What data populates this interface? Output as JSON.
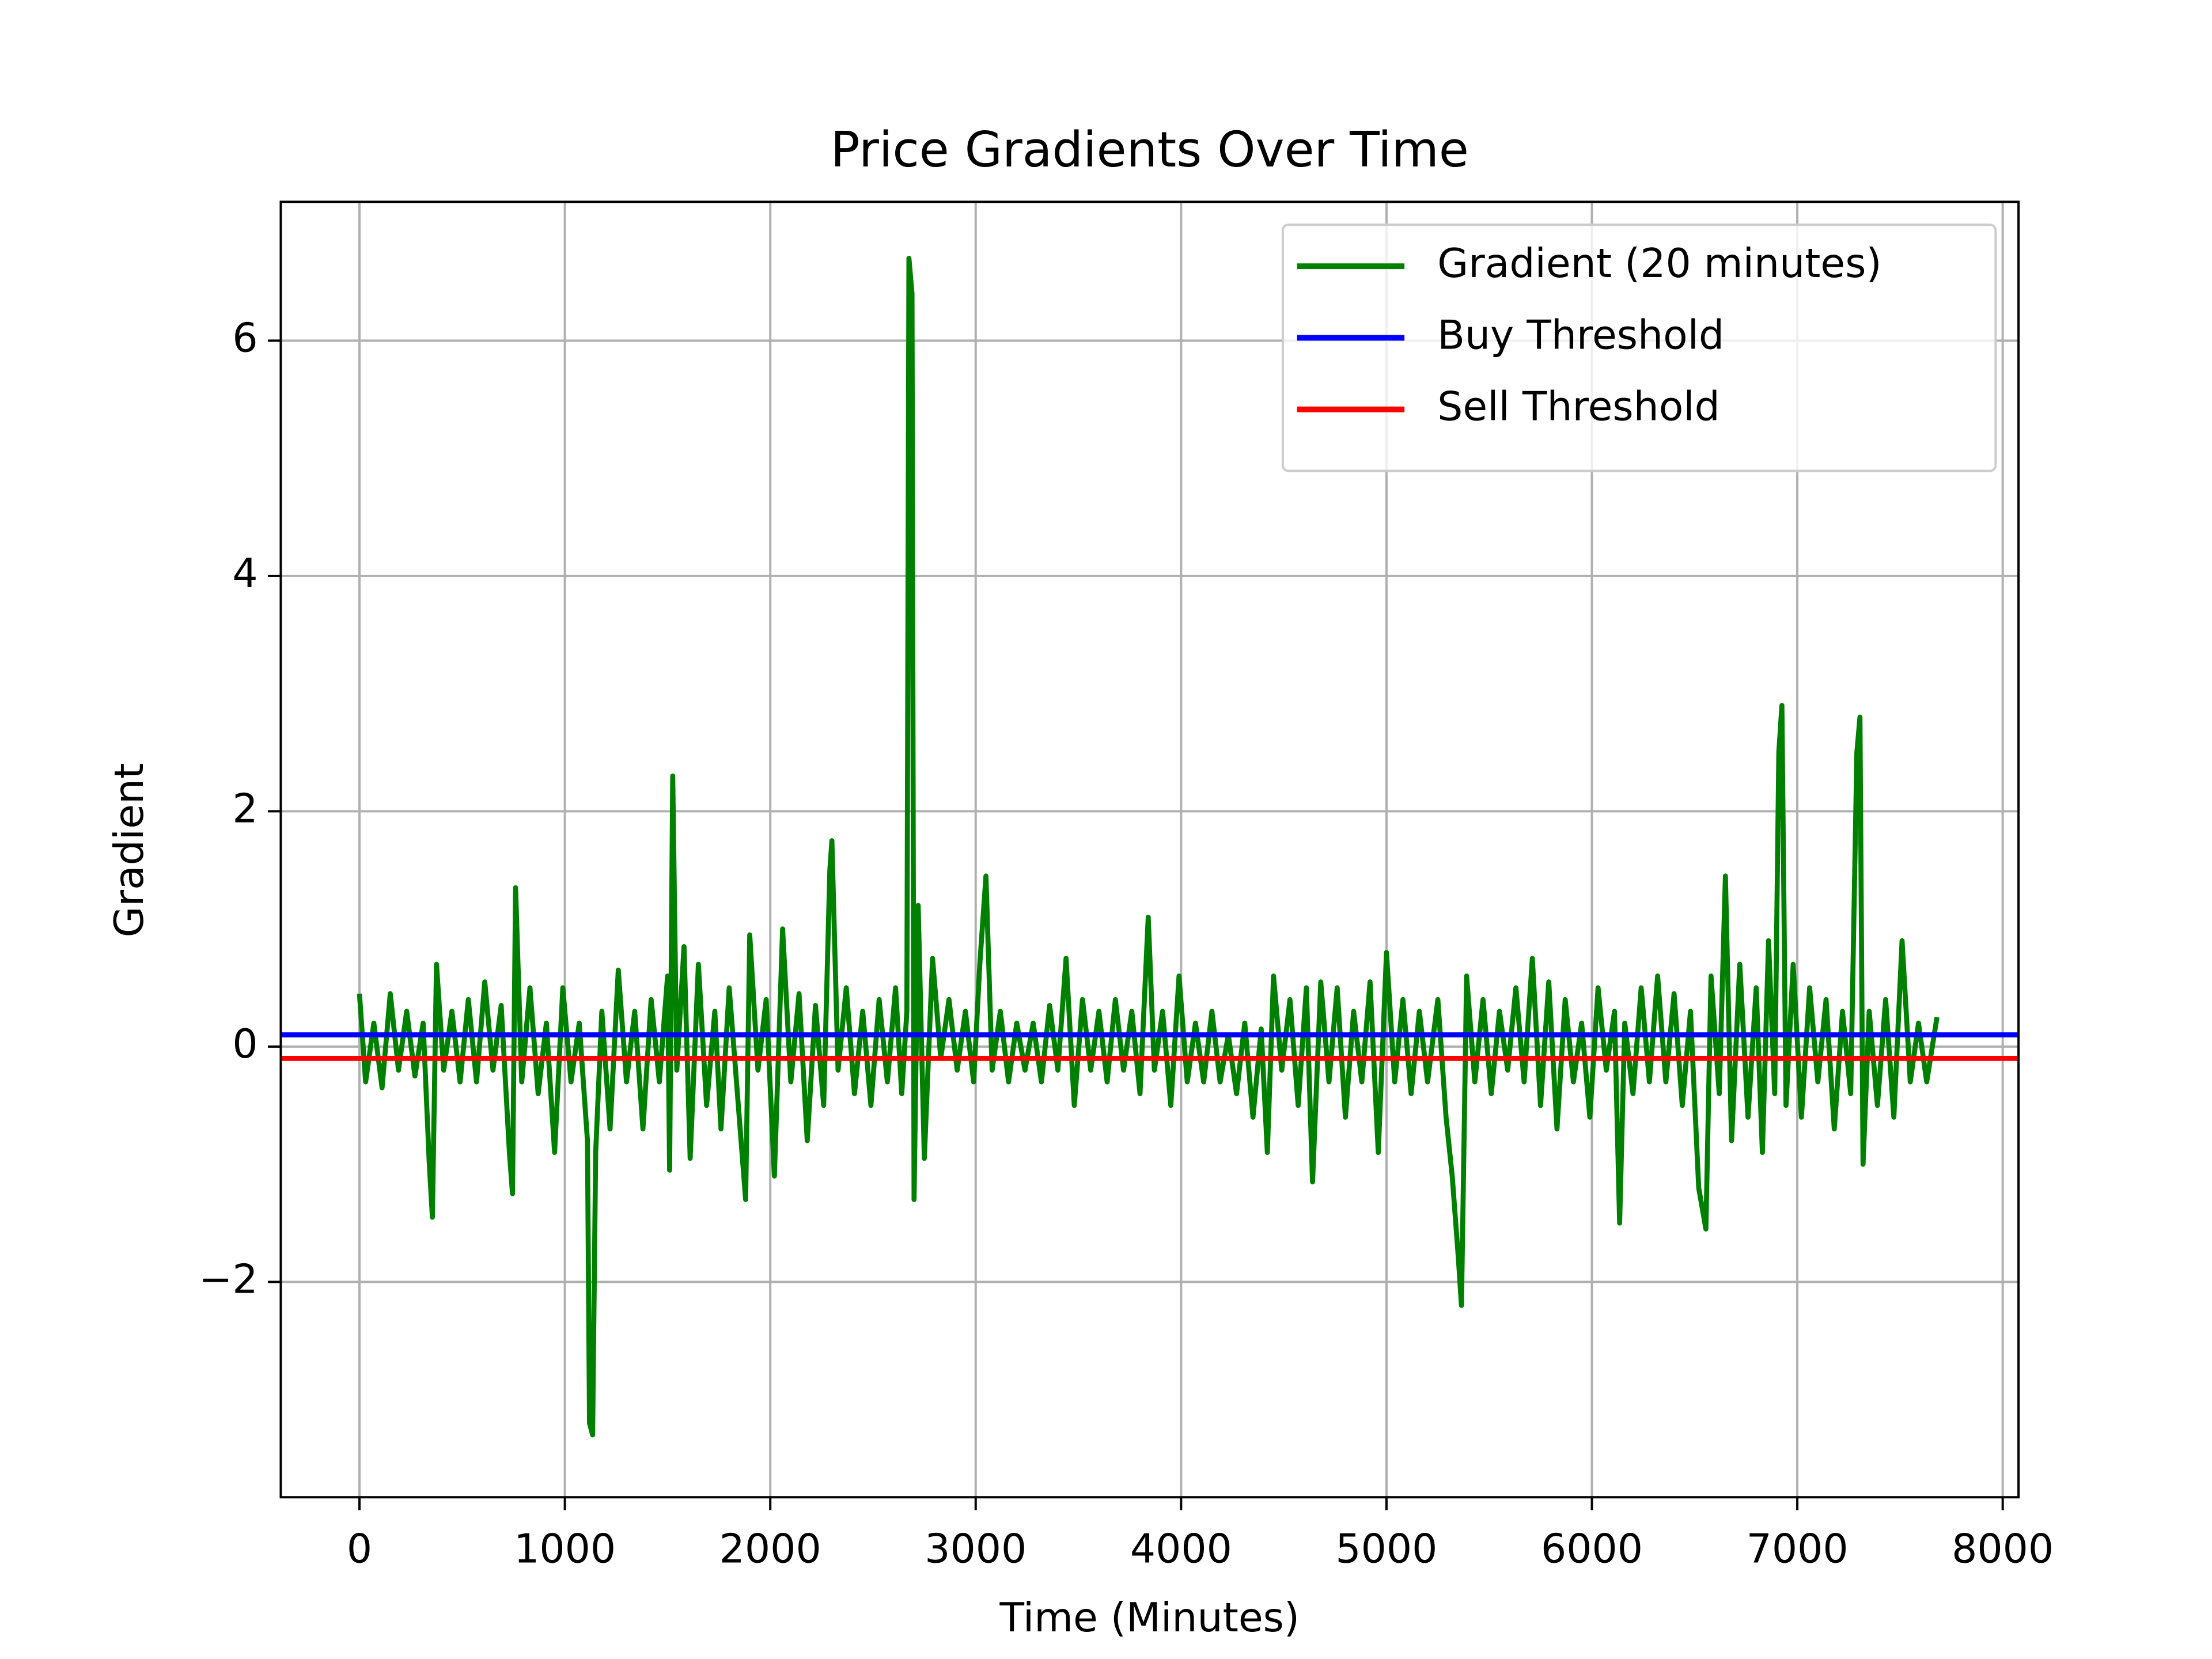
{
  "chart_data": {
    "type": "line",
    "title": "Price Gradients Over Time",
    "x_label": "Time (Minutes)",
    "y_label": "Gradient",
    "xlim": [
      -383,
      8077
    ],
    "ylim": [
      -3.83,
      7.18
    ],
    "xticks": [
      0,
      1000,
      2000,
      3000,
      4000,
      5000,
      6000,
      7000,
      8000
    ],
    "yticks": [
      {
        "value": -2,
        "label": "−2"
      },
      0,
      2,
      4,
      6
    ],
    "grid": true,
    "legend": "upper right",
    "series": [
      {
        "name": "Gradient (20 minutes)",
        "color": "#008000",
        "x": [
          0,
          30,
          70,
          110,
          150,
          190,
          230,
          270,
          310,
          340,
          355,
          375,
          410,
          450,
          490,
          530,
          570,
          610,
          650,
          690,
          730,
          745,
          760,
          790,
          830,
          870,
          910,
          950,
          990,
          1030,
          1070,
          1110,
          1120,
          1135,
          1150,
          1180,
          1220,
          1260,
          1300,
          1340,
          1380,
          1420,
          1460,
          1500,
          1510,
          1525,
          1545,
          1580,
          1610,
          1650,
          1690,
          1730,
          1760,
          1800,
          1840,
          1880,
          1900,
          1940,
          1980,
          2020,
          2060,
          2100,
          2140,
          2180,
          2220,
          2260,
          2290,
          2300,
          2330,
          2370,
          2410,
          2450,
          2490,
          2530,
          2570,
          2610,
          2640,
          2665,
          2675,
          2690,
          2700,
          2720,
          2750,
          2790,
          2830,
          2870,
          2910,
          2950,
          2990,
          3020,
          3050,
          3080,
          3120,
          3160,
          3200,
          3240,
          3280,
          3320,
          3360,
          3400,
          3440,
          3480,
          3520,
          3560,
          3600,
          3640,
          3680,
          3720,
          3760,
          3800,
          3840,
          3870,
          3910,
          3950,
          3990,
          4030,
          4070,
          4110,
          4150,
          4190,
          4230,
          4270,
          4310,
          4350,
          4390,
          4420,
          4450,
          4490,
          4530,
          4570,
          4610,
          4640,
          4680,
          4720,
          4760,
          4800,
          4840,
          4880,
          4920,
          4960,
          5000,
          5040,
          5080,
          5120,
          5160,
          5200,
          5250,
          5290,
          5320,
          5350,
          5365,
          5390,
          5430,
          5470,
          5510,
          5550,
          5590,
          5630,
          5670,
          5710,
          5750,
          5790,
          5830,
          5870,
          5910,
          5950,
          5990,
          6030,
          6070,
          6110,
          6135,
          6160,
          6200,
          6240,
          6280,
          6320,
          6360,
          6400,
          6440,
          6480,
          6520,
          6555,
          6580,
          6620,
          6650,
          6680,
          6720,
          6760,
          6800,
          6830,
          6860,
          6890,
          6910,
          6925,
          6945,
          6980,
          7020,
          7060,
          7100,
          7140,
          7180,
          7220,
          7260,
          7290,
          7305,
          7320,
          7350,
          7390,
          7430,
          7470,
          7510,
          7550,
          7590,
          7630,
          7680
        ],
        "values": [
          0.45,
          -0.3,
          0.2,
          -0.35,
          0.45,
          -0.2,
          0.3,
          -0.25,
          0.2,
          -1.0,
          -1.45,
          0.7,
          -0.2,
          0.3,
          -0.3,
          0.4,
          -0.3,
          0.55,
          -0.2,
          0.35,
          -0.9,
          -1.25,
          1.35,
          -0.3,
          0.5,
          -0.4,
          0.2,
          -0.9,
          0.5,
          -0.3,
          0.2,
          -0.8,
          -3.2,
          -3.3,
          -0.9,
          0.3,
          -0.7,
          0.65,
          -0.3,
          0.3,
          -0.7,
          0.4,
          -0.3,
          0.6,
          -1.05,
          2.3,
          -0.2,
          0.85,
          -0.95,
          0.7,
          -0.5,
          0.3,
          -0.7,
          0.5,
          -0.4,
          -1.3,
          0.95,
          -0.2,
          0.4,
          -1.1,
          1.0,
          -0.3,
          0.45,
          -0.8,
          0.35,
          -0.5,
          1.5,
          1.75,
          -0.2,
          0.5,
          -0.4,
          0.3,
          -0.5,
          0.4,
          -0.3,
          0.5,
          -0.4,
          0.3,
          6.7,
          6.4,
          -1.3,
          1.2,
          -0.95,
          0.75,
          -0.1,
          0.4,
          -0.2,
          0.3,
          -0.3,
          0.7,
          1.45,
          -0.2,
          0.3,
          -0.3,
          0.2,
          -0.2,
          0.2,
          -0.3,
          0.35,
          -0.2,
          0.75,
          -0.5,
          0.4,
          -0.2,
          0.3,
          -0.3,
          0.4,
          -0.2,
          0.3,
          -0.4,
          1.1,
          -0.2,
          0.3,
          -0.5,
          0.6,
          -0.3,
          0.2,
          -0.3,
          0.3,
          -0.3,
          0.1,
          -0.4,
          0.2,
          -0.6,
          0.15,
          -0.9,
          0.6,
          -0.2,
          0.4,
          -0.5,
          0.5,
          -1.15,
          0.55,
          -0.3,
          0.5,
          -0.6,
          0.3,
          -0.3,
          0.55,
          -0.9,
          0.8,
          -0.3,
          0.4,
          -0.4,
          0.3,
          -0.3,
          0.4,
          -0.6,
          -1.1,
          -1.8,
          -2.2,
          0.6,
          -0.3,
          0.4,
          -0.4,
          0.3,
          -0.2,
          0.5,
          -0.3,
          0.75,
          -0.5,
          0.55,
          -0.7,
          0.4,
          -0.3,
          0.2,
          -0.6,
          0.5,
          -0.2,
          0.3,
          -1.5,
          0.2,
          -0.4,
          0.5,
          -0.3,
          0.6,
          -0.3,
          0.45,
          -0.5,
          0.3,
          -1.2,
          -1.55,
          0.6,
          -0.4,
          1.45,
          -0.8,
          0.7,
          -0.6,
          0.5,
          -0.9,
          0.9,
          -0.4,
          2.5,
          2.9,
          -0.5,
          0.7,
          -0.6,
          0.5,
          -0.3,
          0.4,
          -0.7,
          0.3,
          -0.4,
          2.5,
          2.8,
          -1.0,
          0.3,
          -0.5,
          0.4,
          -0.6,
          0.9,
          -0.3,
          0.2,
          -0.3,
          0.25
        ]
      },
      {
        "name": "Buy Threshold",
        "color": "#0000ff",
        "y": 0.1
      },
      {
        "name": "Sell Threshold",
        "color": "#ff0000",
        "y": -0.1
      }
    ]
  }
}
